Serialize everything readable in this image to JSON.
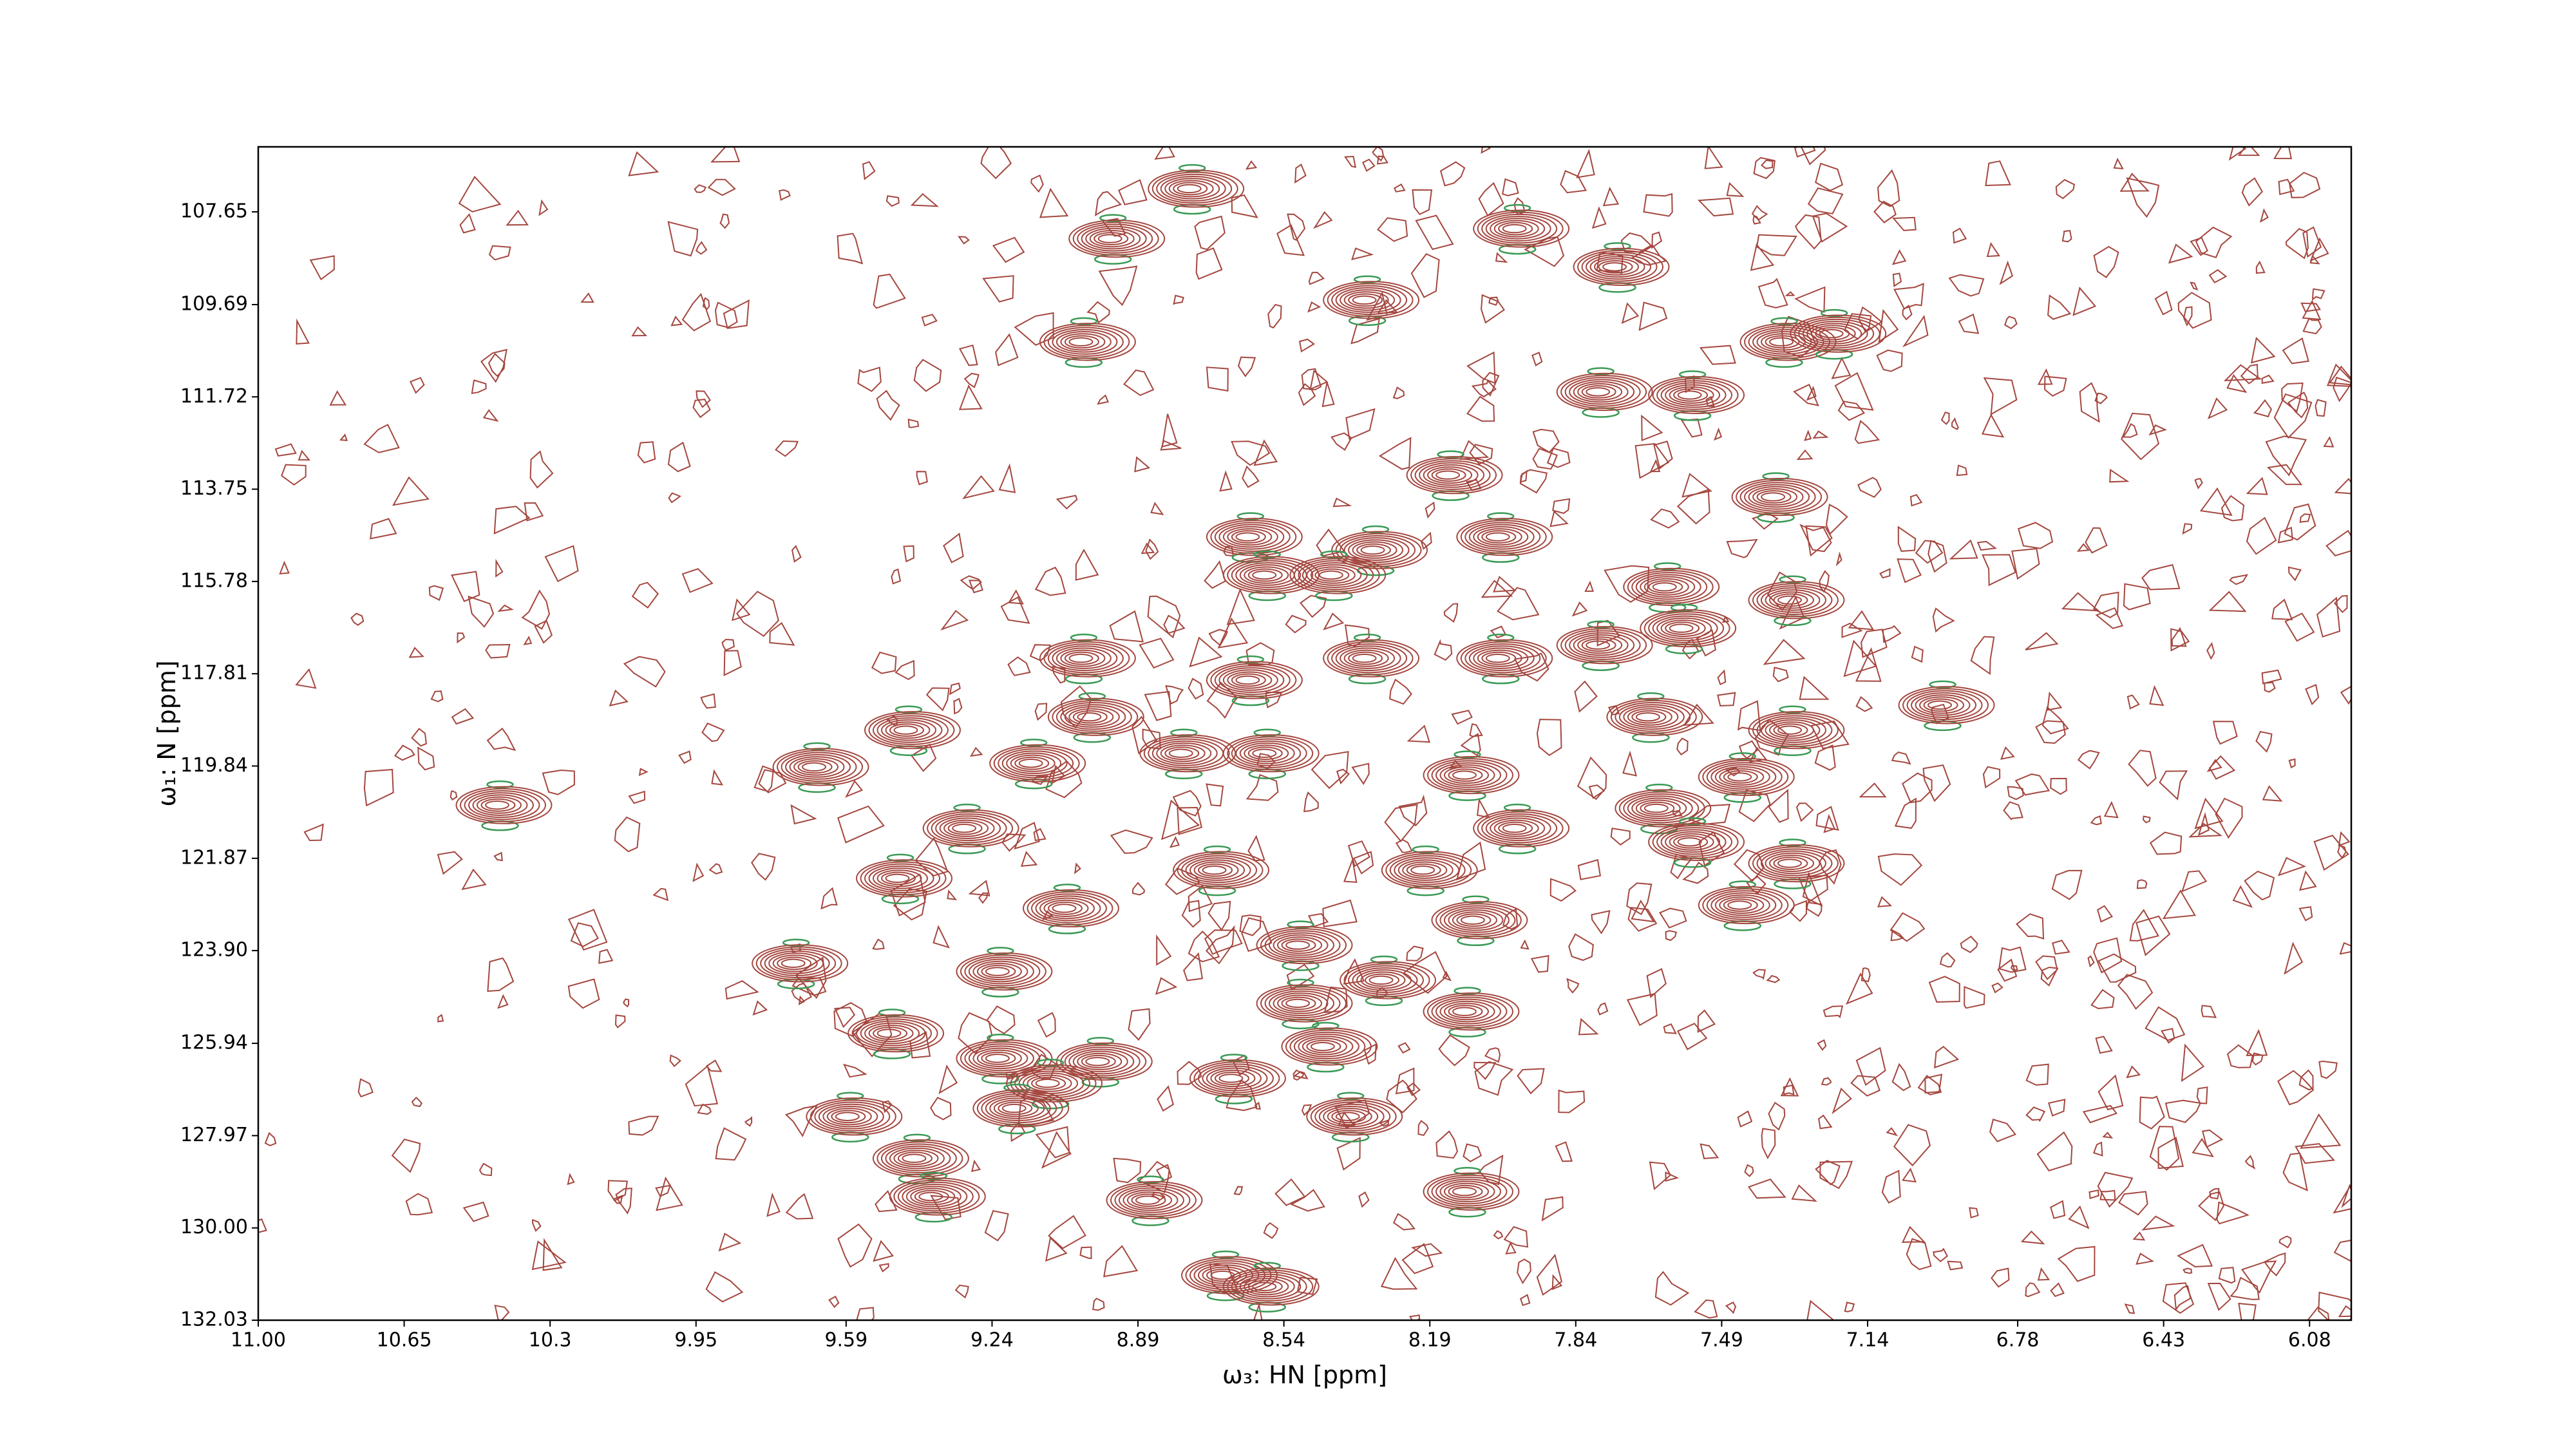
{
  "chart_data": {
    "type": "contour",
    "x_label": "ω₃: HN [ppm]",
    "y_label": "ω₁: N [ppm]",
    "xlim": [
      11.0,
      5.98
    ],
    "ylim": [
      132.03,
      106.22
    ],
    "xticks": [
      {
        "value": 11,
        "label": "11.00"
      },
      10.65,
      10.3,
      9.95,
      9.59,
      9.24,
      8.89,
      8.54,
      8.19,
      7.84,
      7.49,
      7.14,
      6.78,
      6.43,
      6.08
    ],
    "yticks": [
      107.65,
      109.69,
      111.72,
      113.75,
      115.78,
      117.81,
      119.84,
      121.87,
      {
        "value": 123.9,
        "label": "123.90"
      },
      125.94,
      127.97,
      {
        "value": 130,
        "label": "130.00"
      },
      132.03
    ],
    "color": "#a4473f",
    "negative_color": "#3a9a55",
    "x": [
      10.42,
      8.76,
      8.95,
      9.02,
      8.34,
      7.98,
      7.74,
      7.78,
      7.56,
      7.34,
      7.22,
      8.14,
      8.02,
      7.36,
      8.62,
      8.58,
      8.32,
      8.42,
      7.62,
      7.32,
      7.58,
      7.78,
      8.02,
      8.34,
      8.62,
      9.02,
      6.96,
      7.66,
      7.32,
      9.44,
      9.66,
      9.14,
      9.0,
      8.78,
      8.58,
      8.1,
      7.44,
      7.98,
      7.64,
      7.56,
      9.3,
      9.46,
      8.7,
      8.2,
      7.32,
      7.44,
      8.08,
      8.5,
      9.06,
      9.22,
      9.71,
      8.3,
      8.1,
      8.5,
      9.48,
      9.22,
      8.98,
      8.44,
      9.1,
      8.66,
      9.18,
      9.58,
      8.38,
      9.42,
      9.38,
      8.86,
      8.1,
      8.68,
      8.58
    ],
    "y": [
      120.7,
      107.14,
      108.24,
      110.51,
      109.59,
      108.02,
      108.86,
      111.61,
      111.68,
      110.51,
      110.33,
      113.44,
      114.8,
      113.92,
      114.8,
      115.64,
      115.09,
      115.64,
      115.9,
      116.19,
      116.81,
      117.18,
      117.47,
      117.47,
      117.95,
      117.47,
      118.5,
      118.76,
      119.05,
      119.05,
      119.86,
      119.78,
      118.76,
      119.56,
      119.56,
      120.04,
      120.08,
      121.21,
      120.77,
      121.51,
      121.21,
      122.31,
      122.13,
      122.13,
      121.98,
      122.9,
      123.23,
      123.78,
      122.97,
      124.36,
      124.18,
      124.55,
      125.24,
      125.06,
      125.72,
      126.27,
      126.34,
      126.01,
      126.82,
      126.71,
      127.37,
      127.55,
      127.55,
      128.47,
      129.31,
      129.39,
      129.2,
      131.04,
      131.29
    ]
  }
}
